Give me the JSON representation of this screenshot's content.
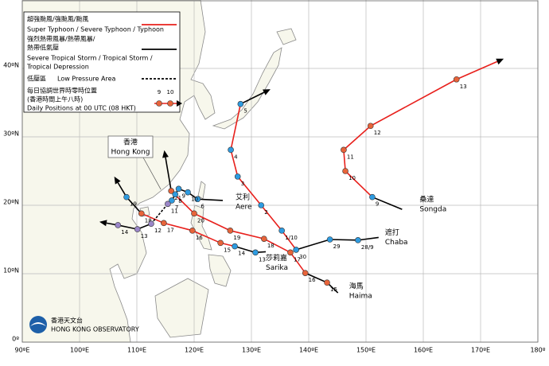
{
  "map": {
    "lon_range": [
      90,
      180
    ],
    "lat_range": [
      0,
      50
    ],
    "lon_ticks": [
      {
        "value": 90,
        "label": "90ºE"
      },
      {
        "value": 100,
        "label": "100ºE"
      },
      {
        "value": 110,
        "label": "110ºE"
      },
      {
        "value": 120,
        "label": "120ºE"
      },
      {
        "value": 130,
        "label": "130ºE"
      },
      {
        "value": 140,
        "label": "140ºE"
      },
      {
        "value": 150,
        "label": "150ºE"
      },
      {
        "value": 160,
        "label": "160ºE"
      },
      {
        "value": 170,
        "label": "170ºE"
      },
      {
        "value": 180,
        "label": "180º"
      }
    ],
    "lat_ticks": [
      {
        "value": 0,
        "label": "0º"
      },
      {
        "value": 10,
        "label": "10ºN"
      },
      {
        "value": 20,
        "label": "20ºN"
      },
      {
        "value": 30,
        "label": "30ºN"
      },
      {
        "value": 40,
        "label": "40ºN"
      }
    ],
    "grid_color": "#bbbbbb"
  },
  "legend": {
    "items": [
      {
        "zh": [
          "超強颱風/強颱風/颱風"
        ],
        "en": [
          "Super Typhoon / Severe Typhoon / Typhoon"
        ],
        "color": "#e8201c",
        "dash": false,
        "marker_color": "#e8643a"
      },
      {
        "zh": [
          "強烈熱帶風暴/熱帶風暴/",
          "熱帶低氣壓"
        ],
        "en": [
          "Severe Tropical Storm / Tropical Storm /",
          "Tropical Depression"
        ],
        "color": "#000000",
        "dash": false,
        "marker_color": "#2e9be0"
      },
      {
        "zh": [
          "低壓區"
        ],
        "en": [
          "Low Pressure Area"
        ],
        "color": "#000000",
        "dash": true,
        "marker_color": "#9a86c8"
      }
    ],
    "daily": {
      "zh": [
        "每日協調世界時零時位置",
        "(香港時間上午八時)"
      ],
      "en": "Daily Positions at 00 UTC (08 HKT)",
      "samples": [
        "9",
        "10"
      ]
    }
  },
  "hong_kong": {
    "zh": "香港",
    "en": "Hong Kong",
    "lon": 114.2,
    "lat": 22.3
  },
  "logo": {
    "zh": "香港天文台",
    "en": "HONG KONG OBSERVATORY"
  },
  "storms": [
    {
      "zh": "桑達",
      "en": "Songda",
      "tracks": [
        {
          "stage": 1,
          "points": [
            [
              156.3,
              19.4
            ],
            [
              151.1,
              21.2
            ]
          ]
        },
        {
          "stage": 0,
          "points": [
            [
              151.1,
              21.2
            ],
            [
              146.4,
              25.0
            ],
            [
              146.1,
              28.1
            ],
            [
              150.8,
              31.6
            ],
            [
              165.8,
              38.4
            ],
            [
              172.9,
              41.0
            ]
          ]
        }
      ],
      "positions": [
        {
          "day": "9",
          "lon": 151.1,
          "lat": 21.2,
          "stage": 1
        },
        {
          "day": "10",
          "lon": 146.4,
          "lat": 25.0,
          "stage": 0
        },
        {
          "day": "11",
          "lon": 146.1,
          "lat": 28.1,
          "stage": 0
        },
        {
          "day": "12",
          "lon": 150.8,
          "lat": 31.6,
          "stage": 0
        },
        {
          "day": "13",
          "lon": 165.8,
          "lat": 38.4,
          "stage": 0
        }
      ]
    },
    {
      "zh": "遮打",
      "en": "Chaba",
      "tracks": [
        {
          "stage": 1,
          "points": [
            [
              152.2,
              15.3
            ],
            [
              148.6,
              14.9
            ],
            [
              143.7,
              15.0
            ],
            [
              137.8,
              13.5
            ]
          ]
        },
        {
          "stage": 0,
          "points": [
            [
              137.8,
              13.5
            ],
            [
              135.3,
              16.3
            ],
            [
              131.7,
              20.0
            ],
            [
              127.6,
              24.2
            ],
            [
              126.4,
              28.1
            ],
            [
              128.1,
              34.8
            ]
          ]
        },
        {
          "stage": 1,
          "points": [
            [
              128.1,
              34.8
            ],
            [
              132.2,
              36.5
            ]
          ]
        }
      ],
      "positions": [
        {
          "day": "28/9",
          "lon": 148.6,
          "lat": 14.9,
          "stage": 1
        },
        {
          "day": "29",
          "lon": 143.7,
          "lat": 15.0,
          "stage": 1
        },
        {
          "day": "30",
          "lon": 137.8,
          "lat": 13.5,
          "stage": 1
        },
        {
          "day": "1/10",
          "lon": 135.3,
          "lat": 16.3,
          "stage": 1
        },
        {
          "day": "2",
          "lon": 131.7,
          "lat": 20.0,
          "stage": 1
        },
        {
          "day": "3",
          "lon": 127.6,
          "lat": 24.2,
          "stage": 1
        },
        {
          "day": "4",
          "lon": 126.4,
          "lat": 28.1,
          "stage": 1
        },
        {
          "day": "5",
          "lon": 128.1,
          "lat": 34.8,
          "stage": 1
        }
      ]
    },
    {
      "zh": "海馬",
      "en": "Haima",
      "tracks": [
        {
          "stage": 1,
          "points": [
            [
              145.1,
              7.2
            ],
            [
              143.2,
              8.7
            ],
            [
              139.4,
              10.1
            ]
          ]
        },
        {
          "stage": 0,
          "points": [
            [
              139.4,
              10.1
            ],
            [
              136.8,
              13.1
            ],
            [
              132.2,
              15.1
            ],
            [
              126.3,
              16.3
            ],
            [
              120.0,
              18.8
            ],
            [
              116.0,
              22.1
            ]
          ]
        },
        {
          "stage": 1,
          "points": [
            [
              116.0,
              22.1
            ],
            [
              115.0,
              27.0
            ]
          ]
        }
      ],
      "positions": [
        {
          "day": "15",
          "lon": 143.2,
          "lat": 8.7,
          "stage": 0
        },
        {
          "day": "16",
          "lon": 139.4,
          "lat": 10.1,
          "stage": 0
        },
        {
          "day": "17",
          "lon": 136.8,
          "lat": 13.1,
          "stage": 0
        },
        {
          "day": "18",
          "lon": 132.2,
          "lat": 15.1,
          "stage": 0
        },
        {
          "day": "19",
          "lon": 126.3,
          "lat": 16.3,
          "stage": 0
        },
        {
          "day": "20",
          "lon": 120.0,
          "lat": 18.8,
          "stage": 0
        },
        {
          "day": "21",
          "lon": 116.0,
          "lat": 22.1,
          "stage": 0
        }
      ]
    },
    {
      "zh": "莎莉嘉",
      "en": "Sarika",
      "tracks": [
        {
          "stage": 1,
          "points": [
            [
              132.5,
              13.2
            ],
            [
              130.7,
              13.1
            ],
            [
              127.1,
              14.0
            ]
          ]
        },
        {
          "stage": 0,
          "points": [
            [
              127.1,
              14.0
            ],
            [
              124.6,
              14.5
            ],
            [
              119.7,
              16.3
            ],
            [
              114.7,
              17.4
            ],
            [
              110.8,
              18.8
            ]
          ]
        },
        {
          "stage": 1,
          "points": [
            [
              110.8,
              18.8
            ],
            [
              108.2,
              21.2
            ],
            [
              106.7,
              23.3
            ]
          ]
        }
      ],
      "positions": [
        {
          "day": "13",
          "lon": 130.7,
          "lat": 13.1,
          "stage": 1
        },
        {
          "day": "14",
          "lon": 127.1,
          "lat": 14.0,
          "stage": 1
        },
        {
          "day": "15",
          "lon": 124.6,
          "lat": 14.5,
          "stage": 0
        },
        {
          "day": "16",
          "lon": 119.7,
          "lat": 16.3,
          "stage": 0
        },
        {
          "day": "17",
          "lon": 114.7,
          "lat": 17.4,
          "stage": 0
        },
        {
          "day": "18",
          "lon": 110.8,
          "lat": 18.8,
          "stage": 0
        },
        {
          "day": "19",
          "lon": 108.2,
          "lat": 21.2,
          "stage": 1
        }
      ]
    },
    {
      "zh": "艾利",
      "en": "Aere",
      "tracks": [
        {
          "stage": 1,
          "points": [
            [
              125.0,
              20.7
            ],
            [
              120.6,
              20.9
            ],
            [
              118.9,
              21.9
            ],
            [
              117.3,
              22.4
            ],
            [
              116.7,
              21.6
            ],
            [
              116.1,
              20.7
            ],
            [
              115.4,
              20.2
            ]
          ]
        },
        {
          "stage": 2,
          "points": [
            [
              115.4,
              20.2
            ],
            [
              112.5,
              17.3
            ]
          ]
        },
        {
          "stage": 1,
          "points": [
            [
              112.5,
              17.3
            ],
            [
              110.1,
              16.5
            ],
            [
              106.7,
              17.1
            ],
            [
              104.7,
              17.4
            ]
          ]
        }
      ],
      "positions": [
        {
          "day": "6",
          "lon": 120.6,
          "lat": 20.9,
          "stage": 1
        },
        {
          "day": "7",
          "lon": 116.1,
          "lat": 20.7,
          "stage": 1
        },
        {
          "day": "8",
          "lon": 116.7,
          "lat": 21.6,
          "stage": 1
        },
        {
          "day": "9",
          "lon": 117.3,
          "lat": 22.4,
          "stage": 1
        },
        {
          "day": "10",
          "lon": 118.9,
          "lat": 21.9,
          "stage": 1
        },
        {
          "day": "11",
          "lon": 115.4,
          "lat": 20.2,
          "stage": 2
        },
        {
          "day": "12",
          "lon": 112.5,
          "lat": 17.3,
          "stage": 2
        },
        {
          "day": "13",
          "lon": 110.1,
          "lat": 16.5,
          "stage": 2
        },
        {
          "day": "14",
          "lon": 106.7,
          "lat": 17.1,
          "stage": 2
        }
      ]
    }
  ]
}
